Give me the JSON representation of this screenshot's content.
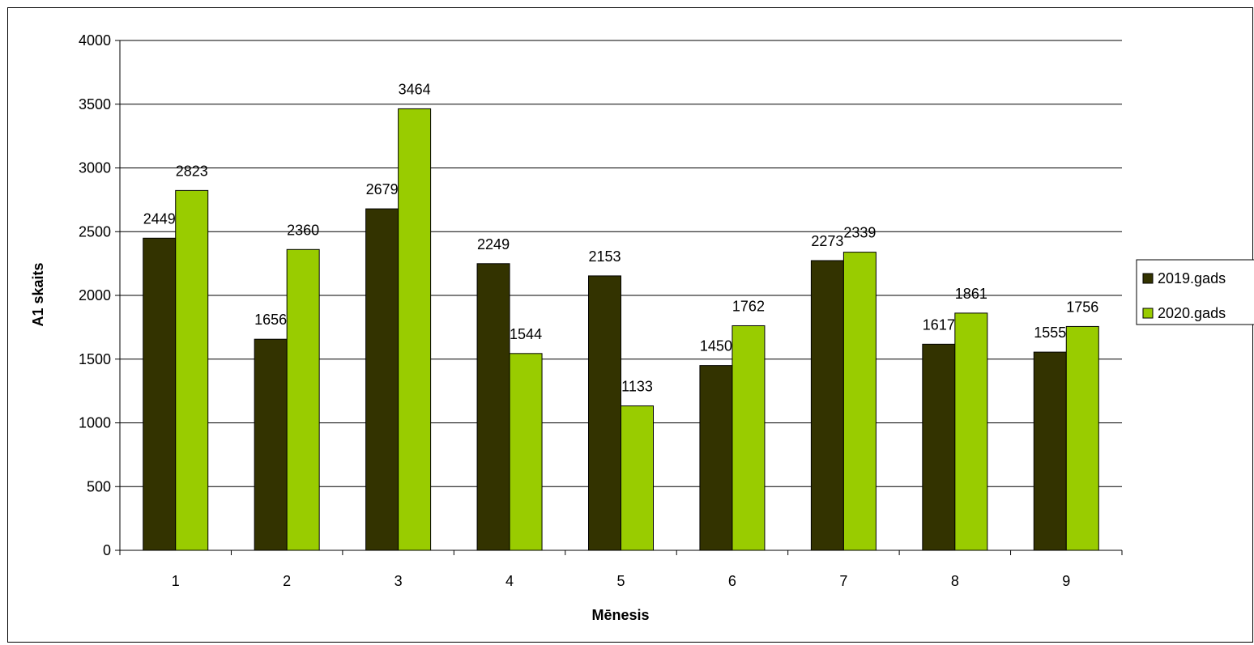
{
  "chart_data": {
    "type": "bar",
    "categories": [
      "1",
      "2",
      "3",
      "4",
      "5",
      "6",
      "7",
      "8",
      "9"
    ],
    "series": [
      {
        "name": "2019.gads",
        "color": "#333300",
        "values": [
          2449,
          1656,
          2679,
          2249,
          2153,
          1450,
          2273,
          1617,
          1555
        ]
      },
      {
        "name": "2020.gads",
        "color": "#99cc00",
        "values": [
          2823,
          2360,
          3464,
          1544,
          1133,
          1762,
          2339,
          1861,
          1756
        ]
      }
    ],
    "xlabel": "Mēnesis",
    "ylabel": "A1 skaits",
    "ylim": [
      0,
      4000
    ],
    "yticks": [
      0,
      500,
      1000,
      1500,
      2000,
      2500,
      3000,
      3500,
      4000
    ],
    "grid": true,
    "plot_background": "#ffffff",
    "legend_position": "right"
  }
}
